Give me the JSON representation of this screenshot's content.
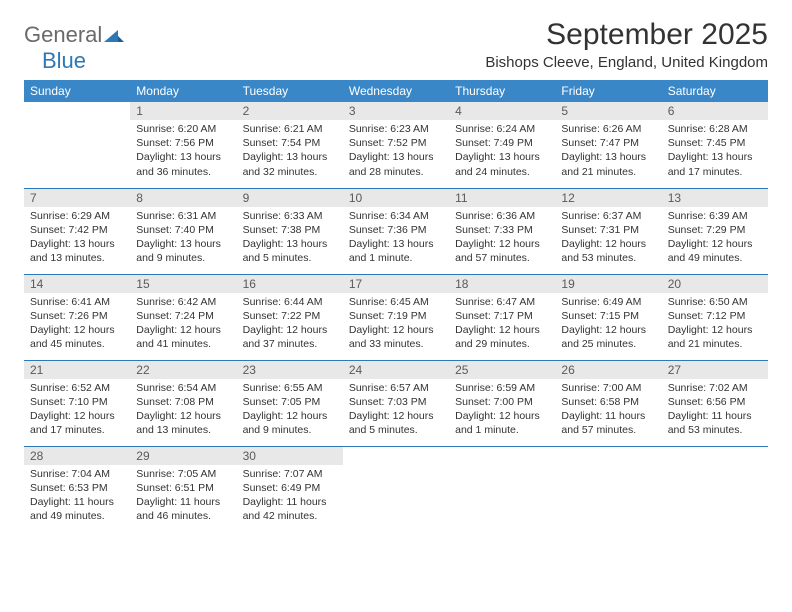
{
  "brand": {
    "word1": "General",
    "word2": "Blue"
  },
  "title": "September 2025",
  "location": "Bishops Cleeve, England, United Kingdom",
  "colors": {
    "header_bg": "#3a87c8",
    "header_text": "#ffffff",
    "daynum_bg": "#e8e8e8",
    "daynum_text": "#5a5a5a",
    "rule": "#2f78b7",
    "brand_gray": "#6a6a6a",
    "brand_blue": "#2f78b7"
  },
  "day_headers": [
    "Sunday",
    "Monday",
    "Tuesday",
    "Wednesday",
    "Thursday",
    "Friday",
    "Saturday"
  ],
  "weeks": [
    [
      {
        "n": "",
        "sunrise": "",
        "sunset": "",
        "daylight": ""
      },
      {
        "n": "1",
        "sunrise": "6:20 AM",
        "sunset": "7:56 PM",
        "daylight": "13 hours and 36 minutes."
      },
      {
        "n": "2",
        "sunrise": "6:21 AM",
        "sunset": "7:54 PM",
        "daylight": "13 hours and 32 minutes."
      },
      {
        "n": "3",
        "sunrise": "6:23 AM",
        "sunset": "7:52 PM",
        "daylight": "13 hours and 28 minutes."
      },
      {
        "n": "4",
        "sunrise": "6:24 AM",
        "sunset": "7:49 PM",
        "daylight": "13 hours and 24 minutes."
      },
      {
        "n": "5",
        "sunrise": "6:26 AM",
        "sunset": "7:47 PM",
        "daylight": "13 hours and 21 minutes."
      },
      {
        "n": "6",
        "sunrise": "6:28 AM",
        "sunset": "7:45 PM",
        "daylight": "13 hours and 17 minutes."
      }
    ],
    [
      {
        "n": "7",
        "sunrise": "6:29 AM",
        "sunset": "7:42 PM",
        "daylight": "13 hours and 13 minutes."
      },
      {
        "n": "8",
        "sunrise": "6:31 AM",
        "sunset": "7:40 PM",
        "daylight": "13 hours and 9 minutes."
      },
      {
        "n": "9",
        "sunrise": "6:33 AM",
        "sunset": "7:38 PM",
        "daylight": "13 hours and 5 minutes."
      },
      {
        "n": "10",
        "sunrise": "6:34 AM",
        "sunset": "7:36 PM",
        "daylight": "13 hours and 1 minute."
      },
      {
        "n": "11",
        "sunrise": "6:36 AM",
        "sunset": "7:33 PM",
        "daylight": "12 hours and 57 minutes."
      },
      {
        "n": "12",
        "sunrise": "6:37 AM",
        "sunset": "7:31 PM",
        "daylight": "12 hours and 53 minutes."
      },
      {
        "n": "13",
        "sunrise": "6:39 AM",
        "sunset": "7:29 PM",
        "daylight": "12 hours and 49 minutes."
      }
    ],
    [
      {
        "n": "14",
        "sunrise": "6:41 AM",
        "sunset": "7:26 PM",
        "daylight": "12 hours and 45 minutes."
      },
      {
        "n": "15",
        "sunrise": "6:42 AM",
        "sunset": "7:24 PM",
        "daylight": "12 hours and 41 minutes."
      },
      {
        "n": "16",
        "sunrise": "6:44 AM",
        "sunset": "7:22 PM",
        "daylight": "12 hours and 37 minutes."
      },
      {
        "n": "17",
        "sunrise": "6:45 AM",
        "sunset": "7:19 PM",
        "daylight": "12 hours and 33 minutes."
      },
      {
        "n": "18",
        "sunrise": "6:47 AM",
        "sunset": "7:17 PM",
        "daylight": "12 hours and 29 minutes."
      },
      {
        "n": "19",
        "sunrise": "6:49 AM",
        "sunset": "7:15 PM",
        "daylight": "12 hours and 25 minutes."
      },
      {
        "n": "20",
        "sunrise": "6:50 AM",
        "sunset": "7:12 PM",
        "daylight": "12 hours and 21 minutes."
      }
    ],
    [
      {
        "n": "21",
        "sunrise": "6:52 AM",
        "sunset": "7:10 PM",
        "daylight": "12 hours and 17 minutes."
      },
      {
        "n": "22",
        "sunrise": "6:54 AM",
        "sunset": "7:08 PM",
        "daylight": "12 hours and 13 minutes."
      },
      {
        "n": "23",
        "sunrise": "6:55 AM",
        "sunset": "7:05 PM",
        "daylight": "12 hours and 9 minutes."
      },
      {
        "n": "24",
        "sunrise": "6:57 AM",
        "sunset": "7:03 PM",
        "daylight": "12 hours and 5 minutes."
      },
      {
        "n": "25",
        "sunrise": "6:59 AM",
        "sunset": "7:00 PM",
        "daylight": "12 hours and 1 minute."
      },
      {
        "n": "26",
        "sunrise": "7:00 AM",
        "sunset": "6:58 PM",
        "daylight": "11 hours and 57 minutes."
      },
      {
        "n": "27",
        "sunrise": "7:02 AM",
        "sunset": "6:56 PM",
        "daylight": "11 hours and 53 minutes."
      }
    ],
    [
      {
        "n": "28",
        "sunrise": "7:04 AM",
        "sunset": "6:53 PM",
        "daylight": "11 hours and 49 minutes."
      },
      {
        "n": "29",
        "sunrise": "7:05 AM",
        "sunset": "6:51 PM",
        "daylight": "11 hours and 46 minutes."
      },
      {
        "n": "30",
        "sunrise": "7:07 AM",
        "sunset": "6:49 PM",
        "daylight": "11 hours and 42 minutes."
      },
      {
        "n": "",
        "sunrise": "",
        "sunset": "",
        "daylight": ""
      },
      {
        "n": "",
        "sunrise": "",
        "sunset": "",
        "daylight": ""
      },
      {
        "n": "",
        "sunrise": "",
        "sunset": "",
        "daylight": ""
      },
      {
        "n": "",
        "sunrise": "",
        "sunset": "",
        "daylight": ""
      }
    ]
  ],
  "labels": {
    "sunrise": "Sunrise:",
    "sunset": "Sunset:",
    "daylight": "Daylight:"
  }
}
